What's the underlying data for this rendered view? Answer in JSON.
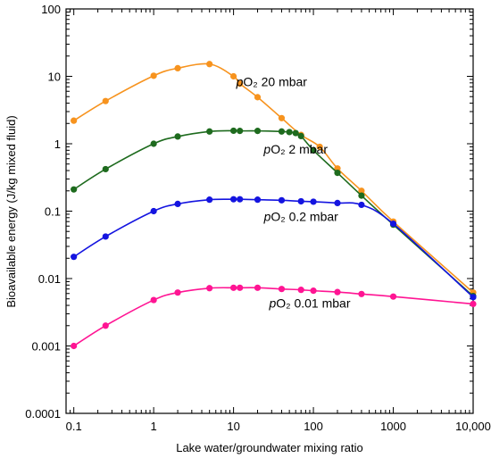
{
  "chart_data": {
    "type": "line",
    "title": "",
    "xlabel": "Lake water/groundwater mixing ratio",
    "ylabel": "Bioavailable energy (J/kg mixed fluid)",
    "xscale": "log",
    "yscale": "log",
    "xlim": [
      0.08,
      10000
    ],
    "ylim": [
      0.0001,
      100
    ],
    "grid": false,
    "legend": "none",
    "x_ticks": [
      0.1,
      1,
      10,
      100,
      1000,
      10000
    ],
    "x_tick_labels": [
      "0.1",
      "1",
      "10",
      "100",
      "1000",
      "10,000"
    ],
    "y_ticks": [
      0.0001,
      0.001,
      0.01,
      0.1,
      1,
      10,
      100
    ],
    "y_tick_labels": [
      "0.0001",
      "0.001",
      "0.01",
      "0.1",
      "1",
      "10",
      "100"
    ],
    "series": [
      {
        "color": "#f7931e",
        "label_italic": "p",
        "label_rest": "O₂ 20 mbar",
        "label_at": [
          30,
          7.2
        ],
        "x": [
          0.1,
          0.25,
          1,
          2,
          5,
          10,
          12,
          20,
          40,
          70,
          120,
          200,
          400,
          1000,
          10000
        ],
        "y": [
          2.2,
          4.3,
          10.2,
          13.2,
          15.2,
          10.0,
          7.8,
          4.9,
          2.4,
          1.35,
          0.9,
          0.43,
          0.2,
          0.07,
          0.0062
        ]
      },
      {
        "color": "#1e6b1e",
        "label_italic": "p",
        "label_rest": "O₂ 2 mbar",
        "label_at": [
          60,
          0.71
        ],
        "x": [
          0.1,
          0.25,
          1,
          2,
          5,
          10,
          12,
          20,
          40,
          50,
          60,
          70,
          100,
          200,
          400,
          1000,
          10000
        ],
        "y": [
          0.21,
          0.42,
          1.0,
          1.28,
          1.52,
          1.56,
          1.55,
          1.55,
          1.52,
          1.49,
          1.44,
          1.3,
          0.8,
          0.37,
          0.17,
          0.063,
          0.0055
        ]
      },
      {
        "color": "#1414e0",
        "label_italic": "p",
        "label_rest": "O₂ 0.2 mbar",
        "label_at": [
          70,
          0.072
        ],
        "x": [
          0.1,
          0.25,
          1,
          2,
          5,
          10,
          12,
          20,
          40,
          70,
          100,
          200,
          400,
          1000,
          10000
        ],
        "y": [
          0.021,
          0.042,
          0.1,
          0.128,
          0.148,
          0.15,
          0.15,
          0.148,
          0.145,
          0.14,
          0.138,
          0.132,
          0.124,
          0.065,
          0.0053
        ]
      },
      {
        "color": "#ff1493",
        "label_italic": "p",
        "label_rest": "O₂ 0.01 mbar",
        "label_at": [
          90,
          0.0037
        ],
        "x": [
          0.1,
          0.25,
          1,
          2,
          5,
          10,
          12,
          20,
          40,
          70,
          100,
          200,
          400,
          1000,
          10000
        ],
        "y": [
          0.001,
          0.002,
          0.0048,
          0.0062,
          0.0072,
          0.0073,
          0.0073,
          0.0073,
          0.007,
          0.0068,
          0.0066,
          0.0063,
          0.0059,
          0.0054,
          0.0042
        ]
      }
    ]
  }
}
